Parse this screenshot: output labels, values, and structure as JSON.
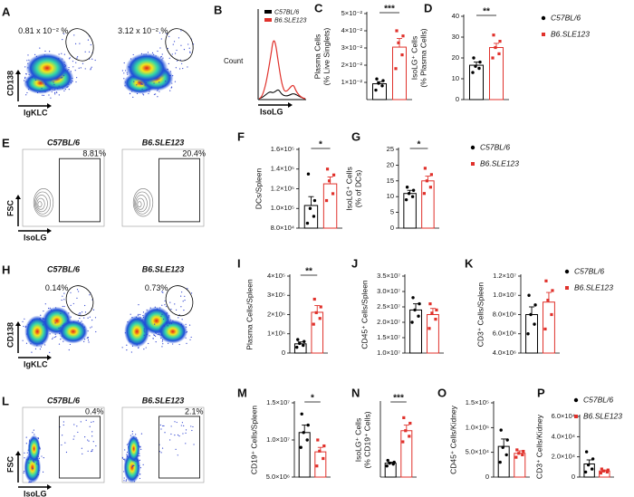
{
  "histogram": {
    "label": "B",
    "ylabel": "Count",
    "xlabel": "IsoLG",
    "legend": [
      "C57BL/6",
      "B6.SLE123"
    ]
  },
  "flow_panels": [
    {
      "label": "A",
      "ylabel": "CD138",
      "xlabel": "IgKLC",
      "style": "density",
      "gate": "oval",
      "plots": [
        {
          "gate_text": "0.81 x 10⁻² %"
        },
        {
          "gate_text": "3.12 x 10⁻² %"
        }
      ]
    },
    {
      "label": "E",
      "ylabel": "FSC",
      "xlabel": "IsoLG",
      "style": "contour",
      "gate": "rect",
      "plots": [
        {
          "title": "C57BL/6",
          "gate_text": "8.81%"
        },
        {
          "title": "B6.SLE123",
          "gate_text": "20.4%"
        }
      ]
    },
    {
      "label": "H",
      "ylabel": "CD138",
      "xlabel": "IgKLC",
      "style": "density",
      "gate": "oval",
      "plots": [
        {
          "title": "C57BL/6",
          "gate_text": "0.14%"
        },
        {
          "title": "B6.SLE123",
          "gate_text": "0.73%"
        }
      ]
    },
    {
      "label": "L",
      "ylabel": "FSC",
      "xlabel": "IsoLG",
      "style": "density",
      "gate": "rect",
      "plots": [
        {
          "title": "C57BL/6",
          "gate_text": "0.4%"
        },
        {
          "title": "B6.SLE123",
          "gate_text": "2.1%"
        }
      ]
    }
  ],
  "chart_data": [
    {
      "type": "bar",
      "label": "C",
      "ylabel": [
        "Plasma Cells",
        "(% Live Singlets)"
      ],
      "ylim": [
        0,
        0.05
      ],
      "yticks": [
        {
          "value": 0.01,
          "label": "1×10⁻²"
        },
        {
          "value": 0.02,
          "label": "2×10⁻²"
        },
        {
          "value": 0.03,
          "label": "3×10⁻²"
        },
        {
          "value": 0.04,
          "label": "4×10⁻²"
        },
        {
          "value": 0.05,
          "label": "5×10⁻²"
        }
      ],
      "significance": "***",
      "series": [
        {
          "name": "C57BL/6",
          "color": "#000000",
          "value": 0.0092,
          "error": 0.0012,
          "points": [
            0.0055,
            0.008,
            0.0095,
            0.011,
            0.012
          ]
        },
        {
          "name": "B6.SLE123",
          "color": "#e0312b",
          "value": 0.0305,
          "error": 0.005,
          "points": [
            0.018,
            0.026,
            0.033,
            0.037,
            0.04
          ]
        }
      ]
    },
    {
      "type": "bar",
      "label": "D",
      "ylabel": [
        "IsoLG⁺ Cells",
        "(% Plasma Cells)"
      ],
      "ylim": [
        0,
        40
      ],
      "yticks": [
        0,
        10,
        20,
        30,
        40
      ],
      "significance": "**",
      "legend": true,
      "series": [
        {
          "name": "C57BL/6",
          "color": "#000000",
          "value": 16.5,
          "error": 1.5,
          "points": [
            13,
            15,
            16,
            18,
            20
          ]
        },
        {
          "name": "B6.SLE123",
          "color": "#e0312b",
          "value": 25,
          "error": 2,
          "points": [
            20,
            22,
            25,
            28,
            31
          ]
        }
      ]
    },
    {
      "type": "bar",
      "label": "F",
      "ylabel": [
        "DCs/Spleen"
      ],
      "ylim": [
        80000,
        160000
      ],
      "yticks": [
        {
          "value": 80000,
          "label": "8.0×10⁴"
        },
        {
          "value": 100000,
          "label": "1.0×10⁵"
        },
        {
          "value": 120000,
          "label": "1.2×10⁵"
        },
        {
          "value": 140000,
          "label": "1.4×10⁵"
        },
        {
          "value": 160000,
          "label": "1.6×10⁵"
        }
      ],
      "significance": "*",
      "series": [
        {
          "name": "C57BL/6",
          "color": "#000000",
          "value": 103000,
          "error": 9000,
          "points": [
            85000,
            92000,
            100000,
            108000,
            135000
          ]
        },
        {
          "name": "B6.SLE123",
          "color": "#e0312b",
          "value": 125000,
          "error": 7000,
          "points": [
            108000,
            115000,
            128000,
            134000,
            140000
          ]
        }
      ]
    },
    {
      "type": "bar",
      "label": "G",
      "ylabel": [
        "IsoLG⁺ Cells",
        "(% of DCs)"
      ],
      "ylim": [
        0,
        25
      ],
      "yticks": [
        0,
        5,
        10,
        15,
        20,
        25
      ],
      "significance": "*",
      "legend": true,
      "series": [
        {
          "name": "C57BL/6",
          "color": "#000000",
          "value": 11,
          "error": 1,
          "points": [
            9,
            10,
            11,
            12,
            13
          ]
        },
        {
          "name": "B6.SLE123",
          "color": "#e0312b",
          "value": 15,
          "error": 1.5,
          "points": [
            11,
            13,
            15,
            17,
            19
          ]
        }
      ]
    },
    {
      "type": "bar",
      "label": "I",
      "ylabel": [
        "Plasma Cells/Spleen"
      ],
      "ylim": [
        0,
        400000
      ],
      "yticks": [
        0,
        {
          "value": 100000,
          "label": "1×10⁵"
        },
        {
          "value": 200000,
          "label": "2×10⁵"
        },
        {
          "value": 300000,
          "label": "3×10⁵"
        },
        {
          "value": 400000,
          "label": "4×10⁵"
        }
      ],
      "significance": "**",
      "series": [
        {
          "name": "C57BL/6",
          "color": "#000000",
          "value": 48000,
          "error": 10000,
          "points": [
            30000,
            40000,
            50000,
            60000,
            70000
          ]
        },
        {
          "name": "B6.SLE123",
          "color": "#e0312b",
          "value": 212000,
          "error": 35000,
          "points": [
            150000,
            180000,
            210000,
            240000,
            280000
          ]
        }
      ]
    },
    {
      "type": "bar",
      "label": "J",
      "ylabel": [
        "CD45⁺ Cells/Spleen"
      ],
      "ylim": [
        10000000,
        35000000
      ],
      "yticks": [
        {
          "value": 10000000,
          "label": "1.0×10⁷"
        },
        {
          "value": 15000000,
          "label": "1.5×10⁷"
        },
        {
          "value": 20000000,
          "label": "2.0×10⁷"
        },
        {
          "value": 25000000,
          "label": "2.5×10⁷"
        },
        {
          "value": 30000000,
          "label": "3.0×10⁷"
        },
        {
          "value": 35000000,
          "label": "3.5×10⁷"
        }
      ],
      "series": [
        {
          "name": "C57BL/6",
          "color": "#000000",
          "value": 24000000,
          "error": 2000000,
          "points": [
            20000000,
            22000000,
            24000000,
            26000000,
            28000000
          ]
        },
        {
          "name": "B6.SLE123",
          "color": "#e0312b",
          "value": 22500000,
          "error": 2000000,
          "points": [
            18000000,
            21000000,
            23000000,
            24000000,
            26000000
          ]
        }
      ]
    },
    {
      "type": "bar",
      "label": "K",
      "ylabel": [
        "CD3⁺ Cells/Spleen"
      ],
      "ylim": [
        4000000,
        12000000
      ],
      "yticks": [
        {
          "value": 4000000,
          "label": "4.0×10⁶"
        },
        {
          "value": 6000000,
          "label": "6.0×10⁶"
        },
        {
          "value": 8000000,
          "label": "8.0×10⁶"
        },
        {
          "value": 10000000,
          "label": "1.0×10⁷"
        },
        {
          "value": 12000000,
          "label": "1.2×10⁷"
        }
      ],
      "legend": true,
      "series": [
        {
          "name": "C57BL/6",
          "color": "#000000",
          "value": 8000000,
          "error": 800000,
          "points": [
            6000000,
            7000000,
            8000000,
            9000000,
            10000000
          ]
        },
        {
          "name": "B6.SLE123",
          "color": "#e0312b",
          "value": 9300000,
          "error": 1000000,
          "points": [
            6500000,
            8000000,
            9500000,
            10500000,
            11500000
          ]
        }
      ]
    },
    {
      "type": "bar",
      "label": "M",
      "ylabel": [
        "CD19⁺ Cells/Spleen"
      ],
      "ylim": [
        5000000,
        15000000
      ],
      "yticks": [
        {
          "value": 5000000,
          "label": "5.0×10⁶"
        },
        {
          "value": 10000000,
          "label": "1.0×10⁷"
        },
        {
          "value": 15000000,
          "label": "1.5×10⁷"
        }
      ],
      "significance": "*",
      "series": [
        {
          "name": "C57BL/6",
          "color": "#000000",
          "value": 11000000,
          "error": 1000000,
          "points": [
            9000000,
            10000000,
            11000000,
            12000000,
            13500000
          ]
        },
        {
          "name": "B6.SLE123",
          "color": "#e0312b",
          "value": 8400000,
          "error": 600000,
          "points": [
            6500000,
            7500000,
            8500000,
            9200000,
            10000000
          ]
        }
      ]
    },
    {
      "type": "bar",
      "label": "N",
      "ylabel": [
        "IsoLG⁺ Cells",
        "(% CD19⁺ Cells)"
      ],
      "ylim": [
        0,
        4
      ],
      "significance": "***",
      "series": [
        {
          "name": "C57BL/6",
          "color": "#000000",
          "value": 0.75,
          "error": 0.05,
          "points": [
            0.6,
            0.7,
            0.75,
            0.8,
            0.9
          ]
        },
        {
          "name": "B6.SLE123",
          "color": "#e0312b",
          "value": 2.5,
          "error": 0.3,
          "points": [
            1.9,
            2.2,
            2.5,
            2.9,
            3.2
          ]
        }
      ]
    },
    {
      "type": "bar",
      "label": "O",
      "ylabel": [
        "CD45⁺ Cells/Kidney"
      ],
      "ylim": [
        0,
        150000
      ],
      "yticks": [
        0,
        {
          "value": 50000,
          "label": "5.0×10⁴"
        },
        {
          "value": 100000,
          "label": "1.0×10⁵"
        },
        {
          "value": 150000,
          "label": "1.5×10⁵"
        }
      ],
      "series": [
        {
          "name": "C57BL/6",
          "color": "#000000",
          "value": 62000,
          "error": 15000,
          "points": [
            30000,
            45000,
            60000,
            75000,
            95000
          ]
        },
        {
          "name": "B6.SLE123",
          "color": "#e0312b",
          "value": 48000,
          "error": 5000,
          "points": [
            40000,
            45000,
            48000,
            52000,
            55000
          ]
        }
      ]
    },
    {
      "type": "bar",
      "label": "P",
      "ylabel": [
        "CD3⁺ Cells/Kidney"
      ],
      "ylim": [
        0,
        60000
      ],
      "yticks": [
        0,
        {
          "value": 20000,
          "label": "2.0×10⁴"
        },
        {
          "value": 40000,
          "label": "4.0×10⁴"
        },
        {
          "value": 60000,
          "label": "6.0×10⁴"
        }
      ],
      "legend": true,
      "series": [
        {
          "name": "C57BL/6",
          "color": "#000000",
          "value": 13000,
          "error": 4000,
          "points": [
            5000,
            8000,
            12000,
            18000,
            25000
          ]
        },
        {
          "name": "B6.SLE123",
          "color": "#e0312b",
          "value": 6000,
          "error": 1000,
          "points": [
            4000,
            5000,
            6000,
            7000,
            8000
          ]
        }
      ]
    }
  ]
}
